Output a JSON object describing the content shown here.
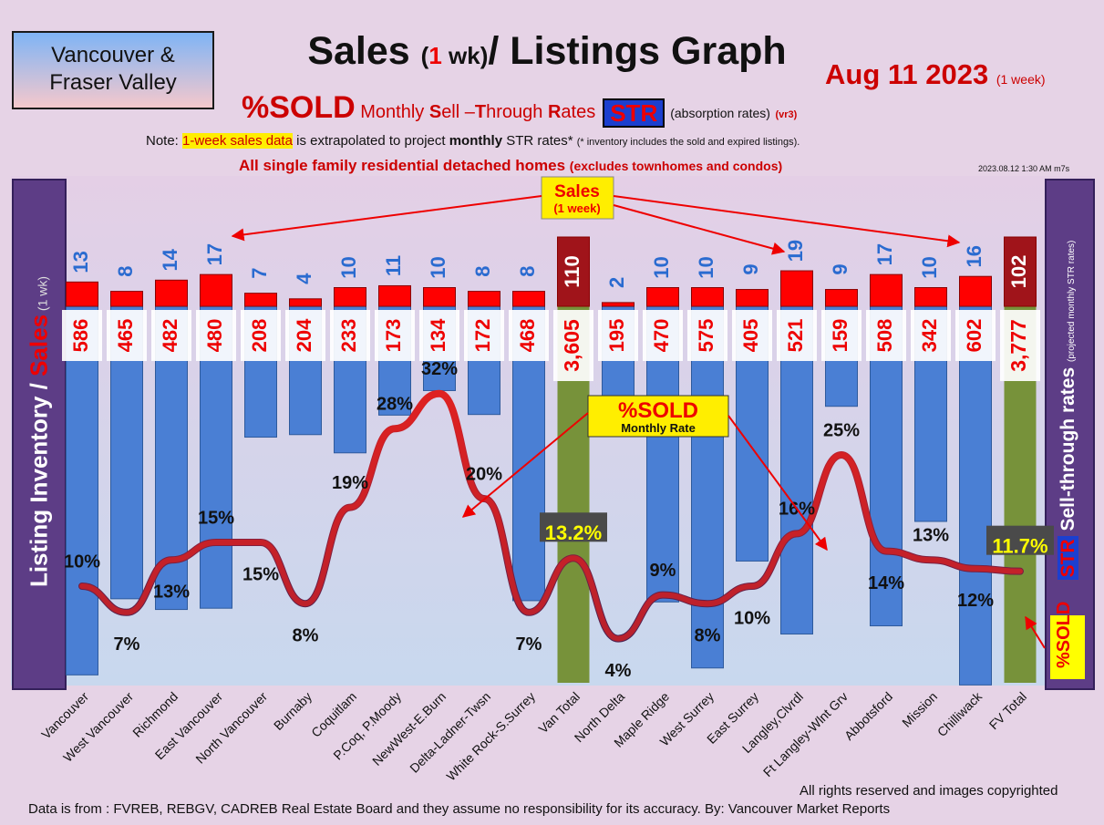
{
  "header": {
    "region_line1": "Vancouver &",
    "region_line2": "Fraser Valley",
    "title_a": "Sales ",
    "title_b": "(",
    "title_c": "1",
    "title_d": " wk)",
    "title_e": "/ Listings Graph",
    "date": "Aug 11  2023",
    "date_sub": "(1 week)",
    "sold_pct": "%SOLD",
    "str_full_a": "Monthly ",
    "str_full_b": "S",
    "str_full_c": "ell –",
    "str_full_d": "T",
    "str_full_e": "hrough ",
    "str_full_f": "R",
    "str_full_g": "ates",
    "str_badge": "STR",
    "absorption": "(absorption rates)",
    "version": "(vr3)",
    "note_a": "Note: ",
    "note_hl": "1-week sales data",
    "note_b": " is extrapolated to project ",
    "note_bold": "monthly",
    "note_c": " STR rates* ",
    "note_tiny": "(* inventory includes the sold and expired listings).",
    "detached": "All single family residential detached homes ",
    "detached_sm": "(excludes townhomes and condos)",
    "stamp": "2023.08.12 1:30 AM m7s"
  },
  "side_labels": {
    "left_a": "Listing Inventory / ",
    "left_b": "Sales",
    "left_c": " (1 wk)",
    "right_str": "STR",
    "right_a": " Sell-through rates ",
    "right_sm": "(projected monthly STR rates)",
    "right_sold": "%SOLD"
  },
  "callouts": {
    "sales_a": "Sales",
    "sales_b": "(1 week)",
    "sold_a": "%SOLD",
    "sold_b": "Monthly Rate"
  },
  "footer": {
    "copyright": "All rights reserved and  images copyrighted",
    "source": "Data is from : FVREB, REBGV, CADREB Real Estate Board and they assume no responsibility for its accuracy. By: Vancouver Market Reports"
  },
  "chart_data": {
    "type": "bar",
    "categories": [
      "Vancouver",
      "West Vancouver",
      "Richmond",
      "East Vancouver",
      "North Vancouver",
      "Burnaby",
      "Coquitlam",
      "P.Coq, P.Moody",
      "NewWest-E.Burn",
      "Delta-Ladner-Twsn",
      "White Rock-S.Surrey",
      "Van Total",
      "North Delta",
      "Maple Ridge",
      "West Surrey",
      "East Surrey",
      "Langley,Clvrdl",
      "Ft Langley-Wlnt Grv",
      "Abbotsford",
      "Mission",
      "Chilliwack",
      "FV Total"
    ],
    "sales_labels": [
      "13",
      "8",
      "14",
      "17",
      "7",
      "4",
      "10",
      "11",
      "10",
      "8",
      "8",
      "110",
      "2",
      "10",
      "10",
      "9",
      "19",
      "9",
      "17",
      "10",
      "16",
      "102"
    ],
    "sales": [
      13,
      8,
      14,
      17,
      7,
      4,
      10,
      11,
      10,
      8,
      8,
      110,
      2,
      10,
      10,
      9,
      19,
      9,
      17,
      10,
      16,
      102
    ],
    "inventory_labels": [
      "586",
      "465",
      "482",
      "480",
      "208",
      "204",
      "233",
      "173",
      "134",
      "172",
      "468",
      "3,605",
      "195",
      "470",
      "575",
      "405",
      "521",
      "159",
      "508",
      "342",
      "602",
      "3,777"
    ],
    "inventory": [
      586,
      465,
      482,
      480,
      208,
      204,
      233,
      173,
      134,
      172,
      468,
      3605,
      195,
      470,
      575,
      405,
      521,
      159,
      508,
      342,
      602,
      3777
    ],
    "str_labels": [
      "10%",
      "7%",
      "13%",
      "15%",
      "15%",
      "8%",
      "19%",
      "28%",
      "32%",
      "20%",
      "7%",
      "13.2%",
      "4%",
      "9%",
      "8%",
      "10%",
      "16%",
      "25%",
      "14%",
      "13%",
      "12%",
      "11.7%"
    ],
    "str_values": [
      10,
      7,
      13,
      15,
      15,
      8,
      19,
      28,
      32,
      20,
      7,
      13.2,
      4,
      9,
      8,
      10,
      16,
      25,
      14,
      13,
      12,
      11.7
    ],
    "totals": [
      "Van Total",
      "FV Total"
    ],
    "colors": {
      "inventory": "#4a7fd4",
      "total_inventory": "#77923a",
      "sales": "#ff0000",
      "total_sales": "#a0141a",
      "str_line": "#dd2222",
      "str_line_low": "#55224a"
    }
  }
}
